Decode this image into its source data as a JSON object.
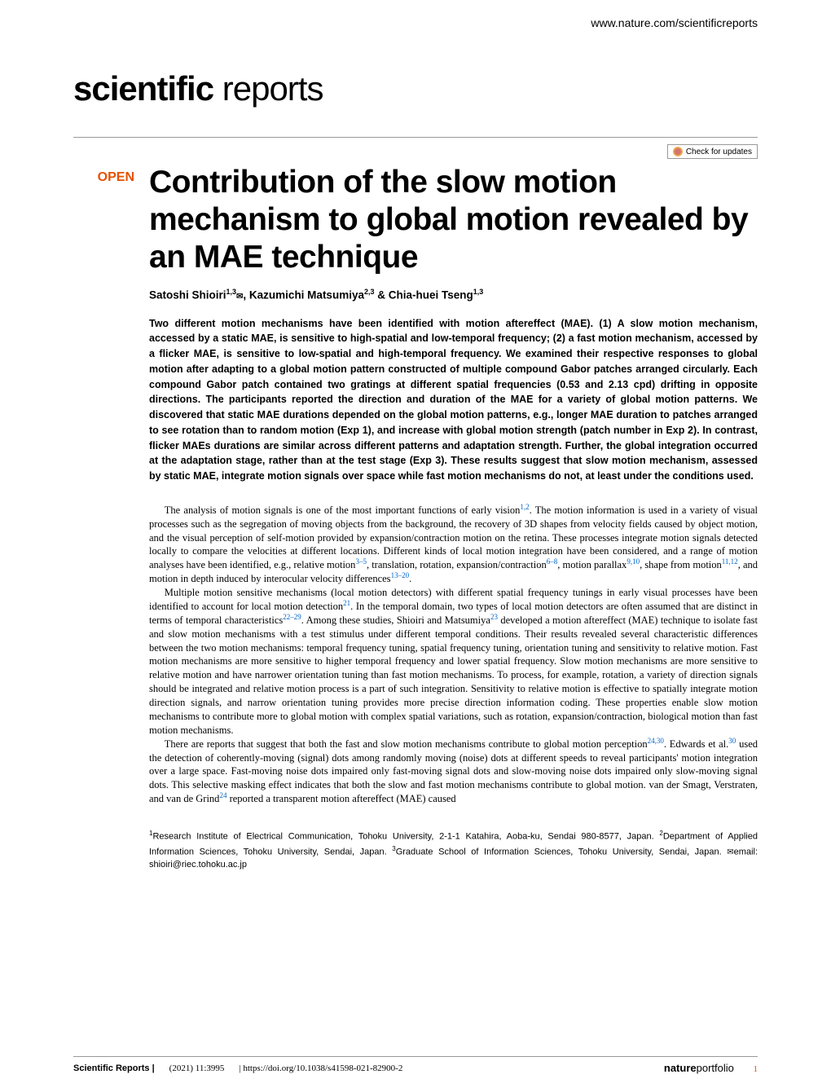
{
  "header": {
    "url": "www.nature.com/scientificreports",
    "journal_logo_bold": "scientific",
    "journal_logo_light": " reports",
    "check_updates": "Check for updates"
  },
  "article": {
    "open_tag": "OPEN",
    "title": "Contribution of the slow motion mechanism to global motion revealed by an MAE technique",
    "authors_html": "Satoshi Shioiri",
    "author1_sup": "1,3",
    "author2": ", Kazumichi Matsumiya",
    "author2_sup": "2,3",
    "author3": " & Chia-huei Tseng",
    "author3_sup": "1,3",
    "abstract": "Two different motion mechanisms have been identified with motion aftereffect (MAE). (1) A slow motion mechanism, accessed by a static MAE, is sensitive to high-spatial and low-temporal frequency; (2) a fast motion mechanism, accessed by a flicker MAE, is sensitive to low-spatial and high-temporal frequency. We examined their respective responses to global motion after adapting to a global motion pattern constructed of multiple compound Gabor patches arranged circularly. Each compound Gabor patch contained two gratings at different spatial frequencies (0.53 and 2.13 cpd) drifting in opposite directions. The participants reported the direction and duration of the MAE for a variety of global motion patterns. We discovered that static MAE durations depended on the global motion patterns, e.g., longer MAE duration to patches arranged to see rotation than to random motion (Exp 1), and increase with global motion strength (patch number in Exp 2). In contrast, flicker MAEs durations are similar across different patterns and adaptation strength. Further, the global integration occurred at the adaptation stage, rather than at the test stage (Exp 3). These results suggest that slow motion mechanism, assessed by static MAE, integrate motion signals over space while fast motion mechanisms do not, at least under the conditions used."
  },
  "body": {
    "p1_start": "The analysis of motion signals is one of the most important functions of early vision",
    "p1_ref1": "1,2",
    "p1_cont1": ". The motion information is used in a variety of visual processes such as the segregation of moving objects from the background, the recovery of 3D shapes from velocity fields caused by object motion, and the visual perception of self-motion provided by expansion/contraction motion on the retina. These processes integrate motion signals detected locally to compare the velocities at different locations. Different kinds of local motion integration have been considered, and a range of motion analyses have been identified, e.g., relative motion",
    "p1_ref2": "3–5",
    "p1_cont2": ", translation, rotation, expansion/contraction",
    "p1_ref3": "6–8",
    "p1_cont3": ", motion parallax",
    "p1_ref4": "9,10",
    "p1_cont4": ", shape from motion",
    "p1_ref5": "11,12",
    "p1_cont5": ", and motion in depth induced by interocular velocity differences",
    "p1_ref6": "13–20",
    "p1_end": ".",
    "p2_start": "Multiple motion sensitive mechanisms (local motion detectors) with different spatial frequency tunings in early visual processes have been identified to account for local motion detection",
    "p2_ref1": "21",
    "p2_cont1": ". In the temporal domain, two types of local motion detectors are often assumed that are distinct in terms of temporal characteristics",
    "p2_ref2": "22–29",
    "p2_cont2": ". Among these studies, Shioiri and Matsumiya",
    "p2_ref3": "23",
    "p2_cont3": " developed a motion aftereffect (MAE) technique to isolate fast and slow motion mechanisms with a test stimulus under different temporal conditions. Their results revealed several characteristic differences between the two motion mechanisms: temporal frequency tuning, spatial frequency tuning, orientation tuning and sensitivity to relative motion. Fast motion mechanisms are more sensitive to higher temporal frequency and lower spatial frequency. Slow motion mechanisms are more sensitive to relative motion and have narrower orientation tuning than fast motion mechanisms. To process, for example, rotation, a variety of direction signals should be integrated and relative motion process is a part of such integration. Sensitivity to relative motion is effective to spatially integrate motion direction signals, and narrow orientation tuning provides more precise direction information coding. These properties enable slow motion mechanisms to contribute more to global motion with complex spatial variations, such as rotation, expansion/contraction, biological motion than fast motion mechanisms.",
    "p3_start": "There are reports that suggest that both the fast and slow motion mechanisms contribute to global motion perception",
    "p3_ref1": "24,30",
    "p3_cont1": ". Edwards et al.",
    "p3_ref2": "30",
    "p3_cont2": " used the detection of coherently-moving (signal) dots among randomly moving (noise) dots at different speeds to reveal participants' motion integration over a large space. Fast-moving noise dots impaired only fast-moving signal dots and slow-moving noise dots impaired only slow-moving signal dots. This selective masking effect indicates that both the slow and fast motion mechanisms contribute to global motion. van der Smagt, Verstraten, and van de Grind",
    "p3_ref3": "24",
    "p3_cont3": " reported a transparent motion aftereffect (MAE) caused"
  },
  "affiliations": {
    "aff1_sup": "1",
    "aff1": "Research Institute of Electrical Communication, Tohoku University, 2-1-1 Katahira, Aoba-ku, Sendai 980-8577, Japan. ",
    "aff2_sup": "2",
    "aff2": "Department of Applied Information Sciences, Tohoku University, Sendai, Japan. ",
    "aff3_sup": "3",
    "aff3": "Graduate School of Information Sciences, Tohoku University, Sendai, Japan. ",
    "email_label": "email: ",
    "email": "shioiri@riec.tohoku.ac.jp"
  },
  "footer": {
    "journal": "Scientific Reports",
    "citation": "(2021) 11:3995",
    "doi": "| https://doi.org/10.1038/s41598-021-82900-2",
    "portfolio_bold": "nature",
    "portfolio_light": "portfolio",
    "page_number": "1"
  },
  "colors": {
    "accent": "#e65100",
    "link": "#0066cc",
    "text": "#000000",
    "divider": "#999999"
  }
}
